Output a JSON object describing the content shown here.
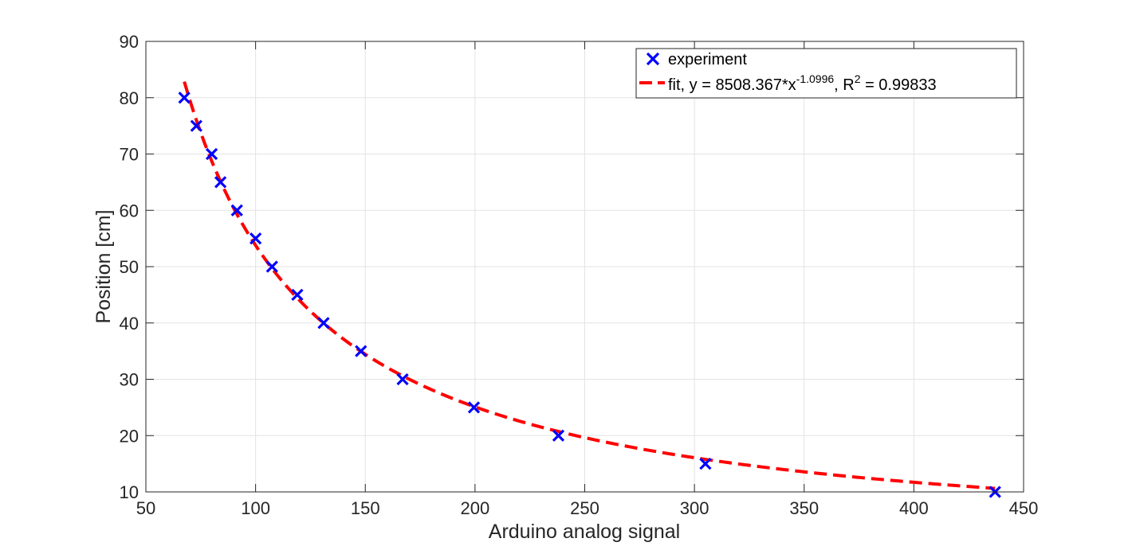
{
  "chart_data": {
    "type": "scatter",
    "xlabel": "Arduino analog signal",
    "ylabel": "Position [cm]",
    "xlim": [
      50,
      450
    ],
    "ylim": [
      10,
      90
    ],
    "xticks": [
      "50",
      "100",
      "150",
      "200",
      "250",
      "300",
      "350",
      "400",
      "450"
    ],
    "yticks": [
      "10",
      "20",
      "30",
      "40",
      "50",
      "60",
      "70",
      "80",
      "90"
    ],
    "grid": true,
    "legend_position": "top-right",
    "series": [
      {
        "name": "experiment",
        "kind": "marker-x",
        "color": "#0000ff",
        "x": [
          67.5,
          73,
          80,
          84,
          91.5,
          100,
          107.5,
          119,
          131,
          148,
          167,
          199.5,
          238,
          305,
          437
        ],
        "y": [
          80,
          75,
          70,
          65,
          60,
          55,
          50,
          45,
          40,
          35,
          30,
          25,
          20,
          15,
          10
        ]
      },
      {
        "name_parts": {
          "prefix": "fit, y = 8508.367*x",
          "exponent": "-1.0996",
          "middle": ", R",
          "r_exponent": "2",
          "suffix": " = 0.99833"
        },
        "kind": "dashed-line",
        "color": "#ff0000",
        "equation": {
          "a": 8508.367,
          "b": -1.0996
        },
        "x_range": [
          67.5,
          437
        ]
      }
    ]
  }
}
